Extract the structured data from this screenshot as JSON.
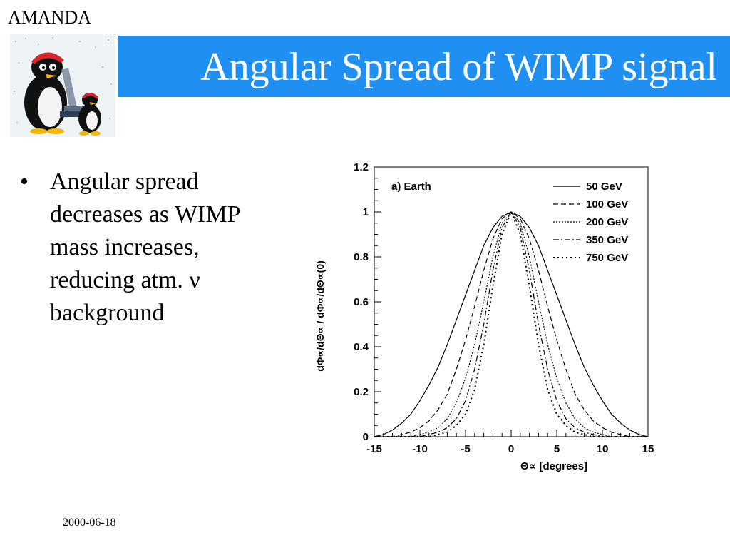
{
  "header": {
    "amanda_label": "AMANDA",
    "title": "Angular Spread of WIMP signal",
    "title_bar_color": "#1f8ff2",
    "logo_icon": "penguin-scientist-icon"
  },
  "bullets": [
    {
      "marker": "•",
      "text": "Angular spread\ndecreases as WIMP\nmass increases,\nreducing atm. ν\nbackground"
    }
  ],
  "footer": {
    "date": "2000-06-18"
  },
  "chart_data": {
    "type": "line",
    "panel_label": "a) Earth",
    "xlabel": "Θ∝ [degrees]",
    "ylabel": "dΦ∝/dΘ∝ / dΦ∝/dΘ∝(0)",
    "xlim": [
      -15,
      15
    ],
    "ylim": [
      0,
      1.2
    ],
    "xticks": [
      "-15",
      "-10",
      "-5",
      "0",
      "5",
      "10",
      "15"
    ],
    "yticks": [
      "0",
      "0.2",
      "0.4",
      "0.6",
      "0.8",
      "1",
      "1.2"
    ],
    "legend_position": "top-right",
    "x": [
      -15,
      -14,
      -13,
      -12,
      -11,
      -10,
      -9,
      -8,
      -7,
      -6,
      -5,
      -4,
      -3,
      -2,
      -1,
      0,
      1,
      2,
      3,
      4,
      5,
      6,
      7,
      8,
      9,
      10,
      11,
      12,
      13,
      14,
      15
    ],
    "series": [
      {
        "name": "50 GeV",
        "dash": "none",
        "values": [
          0.0,
          0.01,
          0.03,
          0.06,
          0.1,
          0.16,
          0.23,
          0.31,
          0.41,
          0.52,
          0.63,
          0.74,
          0.85,
          0.93,
          0.98,
          1.0,
          0.98,
          0.93,
          0.85,
          0.74,
          0.63,
          0.52,
          0.41,
          0.31,
          0.23,
          0.16,
          0.1,
          0.06,
          0.03,
          0.01,
          0.0
        ]
      },
      {
        "name": "100 GeV",
        "dash": "7,4",
        "values": [
          0.0,
          0.0,
          0.0,
          0.01,
          0.02,
          0.04,
          0.07,
          0.12,
          0.19,
          0.3,
          0.43,
          0.58,
          0.74,
          0.88,
          0.97,
          1.0,
          0.97,
          0.88,
          0.74,
          0.58,
          0.43,
          0.3,
          0.19,
          0.12,
          0.07,
          0.04,
          0.02,
          0.01,
          0.0,
          0.0,
          0.0
        ]
      },
      {
        "name": "200 GeV",
        "dash": "2,2",
        "values": [
          0.0,
          0.0,
          0.0,
          0.0,
          0.0,
          0.01,
          0.02,
          0.04,
          0.08,
          0.15,
          0.26,
          0.41,
          0.6,
          0.8,
          0.95,
          1.0,
          0.95,
          0.8,
          0.6,
          0.41,
          0.26,
          0.15,
          0.08,
          0.04,
          0.02,
          0.01,
          0.0,
          0.0,
          0.0,
          0.0,
          0.0
        ]
      },
      {
        "name": "350 GeV",
        "dash": "8,3,2,3",
        "values": [
          0.0,
          0.0,
          0.0,
          0.0,
          0.0,
          0.0,
          0.01,
          0.02,
          0.04,
          0.08,
          0.16,
          0.3,
          0.5,
          0.74,
          0.93,
          1.0,
          0.93,
          0.74,
          0.5,
          0.3,
          0.16,
          0.08,
          0.04,
          0.02,
          0.01,
          0.0,
          0.0,
          0.0,
          0.0,
          0.0,
          0.0
        ]
      },
      {
        "name": "750 GeV",
        "dash": "2,4",
        "values": [
          0.0,
          0.0,
          0.0,
          0.0,
          0.0,
          0.0,
          0.0,
          0.01,
          0.02,
          0.05,
          0.1,
          0.21,
          0.41,
          0.67,
          0.9,
          1.0,
          0.9,
          0.67,
          0.41,
          0.21,
          0.1,
          0.05,
          0.02,
          0.01,
          0.0,
          0.0,
          0.0,
          0.0,
          0.0,
          0.0,
          0.0
        ]
      }
    ]
  }
}
